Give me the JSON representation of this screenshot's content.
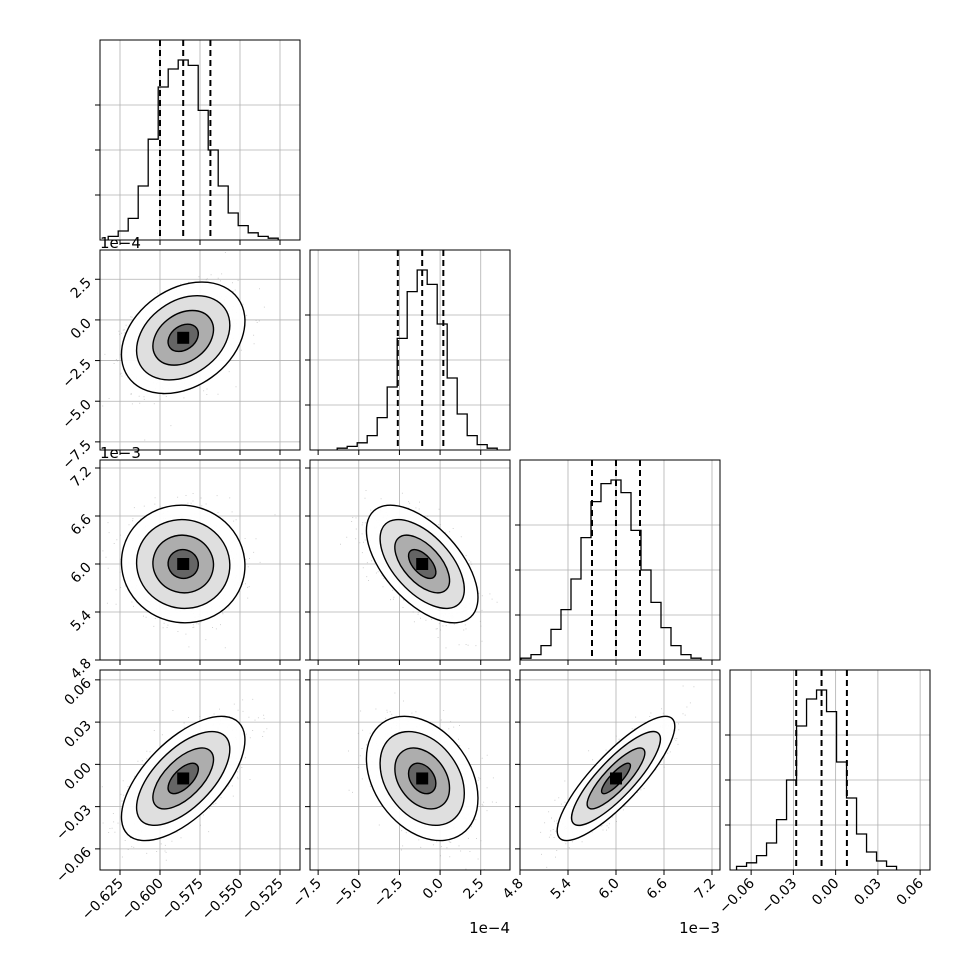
{
  "chart_data": {
    "type": "corner",
    "grid": true,
    "parameters": [
      {
        "range": [
          -0.6375,
          -0.5125
        ],
        "ticks": [
          -0.625,
          -0.6,
          -0.575,
          -0.55,
          -0.525
        ],
        "tick_labels": [
          "−0.625",
          "−0.600",
          "−0.575",
          "−0.550",
          "−0.525"
        ],
        "offset_text": "",
        "quantiles": [
          -0.6,
          -0.5855,
          -0.5685
        ],
        "peak": -0.5855,
        "hist_shape": [
          0.02,
          0.05,
          0.12,
          0.3,
          0.56,
          0.85,
          0.95,
          1,
          0.97,
          0.72,
          0.5,
          0.3,
          0.15,
          0.08,
          0.04,
          0.02,
          0.01
        ]
      },
      {
        "range": [
          -8.0,
          4.3
        ],
        "ticks": [
          -7.5,
          -5.0,
          -2.5,
          0.0,
          2.5
        ],
        "tick_labels": [
          "−7.5",
          "−5.0",
          "−2.5",
          "0.0",
          "2.5"
        ],
        "offset_text": "1e−4",
        "quantiles": [
          -2.6,
          -1.1,
          0.2
        ],
        "peak": -1.1,
        "hist_shape": [
          0.01,
          0.02,
          0.04,
          0.08,
          0.18,
          0.35,
          0.62,
          0.88,
          1,
          0.92,
          0.7,
          0.4,
          0.2,
          0.08,
          0.03,
          0.01
        ]
      },
      {
        "range": [
          4.8,
          7.3
        ],
        "ticks": [
          4.8,
          5.4,
          6.0,
          6.6,
          7.2
        ],
        "tick_labels": [
          "4.8",
          "5.4",
          "6.0",
          "6.6",
          "7.2"
        ],
        "offset_text": "1e−3",
        "quantiles": [
          5.7,
          6.0,
          6.3
        ],
        "peak": 6.0,
        "hist_shape": [
          0.01,
          0.03,
          0.08,
          0.17,
          0.28,
          0.45,
          0.68,
          0.88,
          0.98,
          1,
          0.93,
          0.72,
          0.5,
          0.32,
          0.18,
          0.08,
          0.03,
          0.01
        ]
      },
      {
        "range": [
          -0.075,
          0.067
        ],
        "ticks": [
          -0.06,
          -0.03,
          0.0,
          0.03,
          0.06
        ],
        "tick_labels": [
          "−0.06",
          "−0.03",
          "0.00",
          "0.03",
          "0.06"
        ],
        "offset_text": "",
        "quantiles": [
          -0.028,
          -0.01,
          0.008
        ],
        "peak": -0.01,
        "hist_shape": [
          0.02,
          0.04,
          0.08,
          0.15,
          0.28,
          0.5,
          0.8,
          0.95,
          1,
          0.88,
          0.6,
          0.4,
          0.2,
          0.1,
          0.05,
          0.02
        ]
      }
    ],
    "correlations": [
      [
        1,
        0.3,
        -0.03,
        0.62
      ],
      [
        0.3,
        1,
        -0.57,
        -0.32
      ],
      [
        -0.03,
        -0.57,
        1,
        0.84
      ],
      [
        0.62,
        -0.32,
        0.84,
        1
      ]
    ]
  }
}
